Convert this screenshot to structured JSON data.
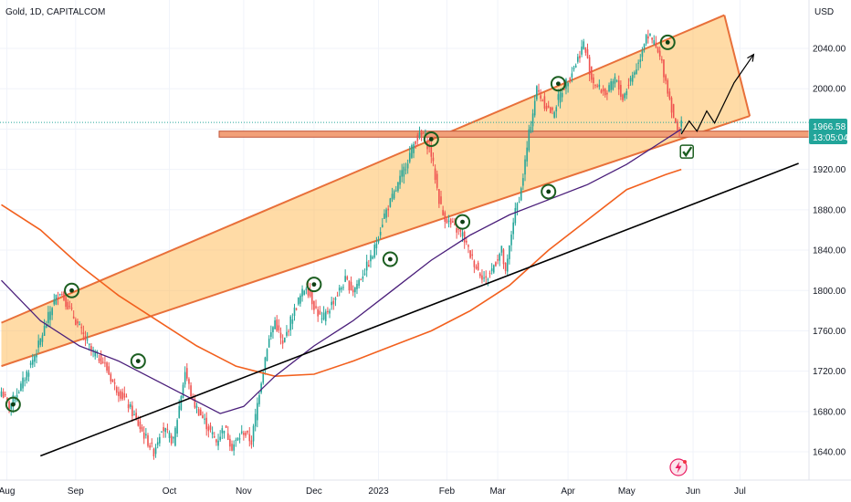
{
  "chart_data": {
    "type": "candlestick",
    "title": "Gold, 1D, CAPITALCOM",
    "currency": "USD",
    "ylim": [
      1612,
      2088
    ],
    "y_ticks": [
      "2040.00",
      "2000.00",
      "1960.00",
      "1920.00",
      "1880.00",
      "1840.00",
      "1800.00",
      "1760.00",
      "1720.00",
      "1680.00",
      "1640.00"
    ],
    "x_ticks": [
      "Aug",
      "Sep",
      "Oct",
      "Nov",
      "Dec",
      "2023",
      "Feb",
      "Mar",
      "Apr",
      "May",
      "Jun",
      "Jul"
    ],
    "last_price": "1966.58",
    "countdown": "13:05:04",
    "up_color": "#26a69a",
    "down_color": "#ef5350",
    "anchors": [
      [
        0,
        1700
      ],
      [
        4,
        1685
      ],
      [
        10,
        1705
      ],
      [
        18,
        1740
      ],
      [
        26,
        1785
      ],
      [
        30,
        1800
      ],
      [
        38,
        1770
      ],
      [
        46,
        1740
      ],
      [
        52,
        1730
      ],
      [
        58,
        1705
      ],
      [
        64,
        1690
      ],
      [
        72,
        1660
      ],
      [
        78,
        1640
      ],
      [
        82,
        1665
      ],
      [
        88,
        1650
      ],
      [
        94,
        1720
      ],
      [
        98,
        1690
      ],
      [
        104,
        1670
      ],
      [
        110,
        1650
      ],
      [
        114,
        1665
      ],
      [
        118,
        1645
      ],
      [
        124,
        1660
      ],
      [
        128,
        1650
      ],
      [
        132,
        1700
      ],
      [
        136,
        1745
      ],
      [
        140,
        1770
      ],
      [
        144,
        1745
      ],
      [
        148,
        1770
      ],
      [
        152,
        1790
      ],
      [
        156,
        1805
      ],
      [
        160,
        1785
      ],
      [
        164,
        1770
      ],
      [
        170,
        1790
      ],
      [
        176,
        1810
      ],
      [
        180,
        1800
      ],
      [
        186,
        1820
      ],
      [
        190,
        1835
      ],
      [
        196,
        1875
      ],
      [
        202,
        1900
      ],
      [
        208,
        1930
      ],
      [
        212,
        1950
      ],
      [
        216,
        1955
      ],
      [
        220,
        1935
      ],
      [
        224,
        1890
      ],
      [
        226,
        1875
      ],
      [
        230,
        1865
      ],
      [
        236,
        1855
      ],
      [
        240,
        1835
      ],
      [
        244,
        1820
      ],
      [
        248,
        1810
      ],
      [
        252,
        1825
      ],
      [
        256,
        1840
      ],
      [
        258,
        1815
      ],
      [
        262,
        1870
      ],
      [
        266,
        1900
      ],
      [
        270,
        1955
      ],
      [
        274,
        2000
      ],
      [
        278,
        1985
      ],
      [
        282,
        1975
      ],
      [
        286,
        1995
      ],
      [
        290,
        2010
      ],
      [
        294,
        2025
      ],
      [
        298,
        2045
      ],
      [
        302,
        2010
      ],
      [
        306,
        2000
      ],
      [
        310,
        1995
      ],
      [
        314,
        2010
      ],
      [
        318,
        1990
      ],
      [
        322,
        2010
      ],
      [
        326,
        2025
      ],
      [
        330,
        2055
      ],
      [
        334,
        2045
      ],
      [
        338,
        2025
      ],
      [
        342,
        1990
      ],
      [
        346,
        1955
      ],
      [
        348,
        1970
      ]
    ],
    "ma_purple": [
      [
        0,
        1810
      ],
      [
        20,
        1770
      ],
      [
        40,
        1745
      ],
      [
        60,
        1730
      ],
      [
        80,
        1710
      ],
      [
        100,
        1690
      ],
      [
        112,
        1678
      ],
      [
        124,
        1685
      ],
      [
        140,
        1715
      ],
      [
        160,
        1745
      ],
      [
        180,
        1770
      ],
      [
        200,
        1800
      ],
      [
        220,
        1830
      ],
      [
        240,
        1855
      ],
      [
        260,
        1875
      ],
      [
        280,
        1890
      ],
      [
        300,
        1905
      ],
      [
        320,
        1925
      ],
      [
        340,
        1950
      ],
      [
        348,
        1960
      ]
    ],
    "ma_orange": [
      [
        0,
        1885
      ],
      [
        20,
        1860
      ],
      [
        40,
        1825
      ],
      [
        60,
        1795
      ],
      [
        80,
        1770
      ],
      [
        100,
        1745
      ],
      [
        120,
        1725
      ],
      [
        140,
        1715
      ],
      [
        160,
        1717
      ],
      [
        180,
        1730
      ],
      [
        200,
        1745
      ],
      [
        220,
        1760
      ],
      [
        240,
        1780
      ],
      [
        260,
        1805
      ],
      [
        280,
        1840
      ],
      [
        300,
        1870
      ],
      [
        320,
        1900
      ],
      [
        340,
        1915
      ],
      [
        348,
        1920
      ]
    ],
    "channel": {
      "lower_start": [
        0,
        1725
      ],
      "lower_end": [
        383,
        1973
      ],
      "upper_start": [
        0,
        1768
      ],
      "upper_end": [
        370,
        2073
      ]
    },
    "support_line": {
      "start": [
        20,
        1636
      ],
      "end": [
        408,
        1926
      ]
    },
    "horizontal_zone": [
      1952,
      1958
    ],
    "projection": [
      [
        348,
        1955
      ],
      [
        352,
        1968
      ],
      [
        356,
        1958
      ],
      [
        361,
        1978
      ],
      [
        365,
        1966
      ],
      [
        375,
        2006
      ],
      [
        385,
        2034
      ]
    ],
    "markers": [
      [
        6,
        1687
      ],
      [
        36,
        1800
      ],
      [
        70,
        1730
      ],
      [
        160,
        1806
      ],
      [
        199,
        1831
      ],
      [
        220,
        1950
      ],
      [
        236,
        1868
      ],
      [
        280,
        1898
      ],
      [
        285,
        2005
      ],
      [
        341,
        2046
      ]
    ],
    "grid": true
  }
}
